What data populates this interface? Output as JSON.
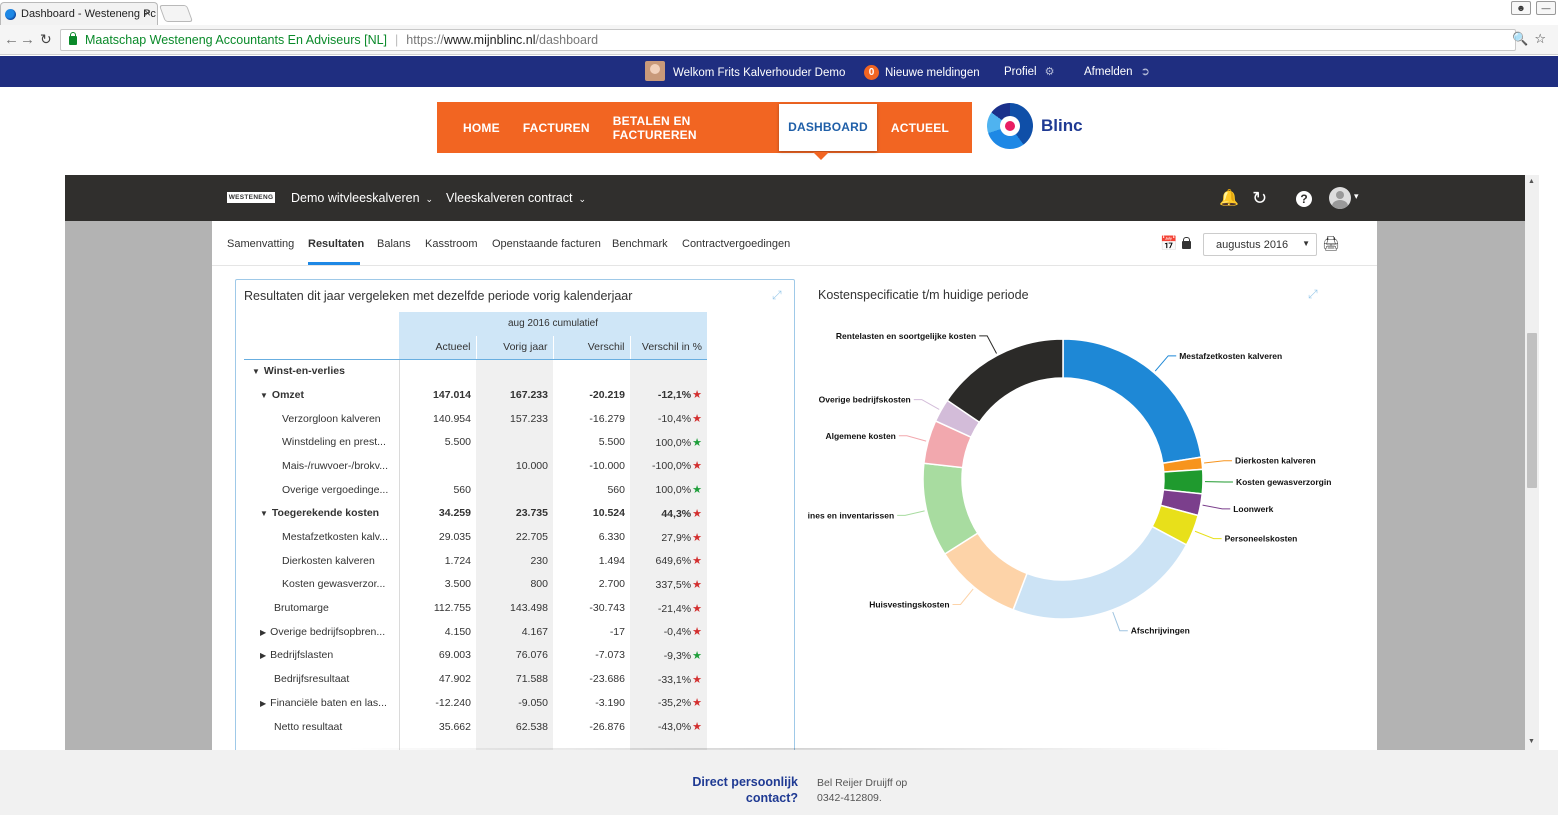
{
  "browser": {
    "tab_title": "Dashboard - Westeneng Pc",
    "tab_close": "×",
    "org_label": "Maatschap Westeneng Accountants En Adviseurs [NL]",
    "url_scheme": "https://",
    "url_host": "www.mijnblinc.nl",
    "url_path": "/dashboard"
  },
  "topbar": {
    "welcome": "Welkom Frits Kalverhouder Demo",
    "notifications_count": "0",
    "notifications_label": "Nieuwe meldingen",
    "profile": "Profiel",
    "logout": "Afmelden"
  },
  "mainnav": {
    "items": [
      "HOME",
      "FACTUREN",
      "BETALEN EN FACTUREREN",
      "DASHBOARD",
      "ACTUEEL"
    ],
    "active": "DASHBOARD",
    "brand": "Blinc"
  },
  "dashboard": {
    "mini_logo": "WESTENENG",
    "company": "Demo witvleeskalveren",
    "contract": "Vleeskalveren contract",
    "subtabs": [
      "Samenvatting",
      "Resultaten",
      "Balans",
      "Kasstroom",
      "Openstaande facturen",
      "Benchmark",
      "Contractvergoedingen"
    ],
    "period": "augustus 2016"
  },
  "results": {
    "title": "Resultaten dit jaar vergeleken met dezelfde periode vorig kalenderjaar",
    "group_header": "aug 2016 cumulatief",
    "columns": [
      "Actueel",
      "Vorig jaar",
      "Verschil",
      "Verschil in %"
    ],
    "rows": [
      {
        "label": "Winst-en-verlies",
        "level": 0,
        "bold": true,
        "toggle": "open",
        "a": "",
        "b": "",
        "c": "",
        "d": "",
        "star": ""
      },
      {
        "label": "Omzet",
        "level": 1,
        "bold": true,
        "toggle": "open",
        "a": "147.014",
        "b": "167.233",
        "c": "-20.219",
        "d": "-12,1%",
        "star": "red"
      },
      {
        "label": "Verzorgloon kalveren",
        "level": 2,
        "bold": false,
        "toggle": "",
        "a": "140.954",
        "b": "157.233",
        "c": "-16.279",
        "d": "-10,4%",
        "star": "red"
      },
      {
        "label": "Winstdeling en prest...",
        "level": 2,
        "bold": false,
        "toggle": "",
        "a": "5.500",
        "b": "",
        "c": "5.500",
        "d": "100,0%",
        "star": "green"
      },
      {
        "label": "Mais-/ruwvoer-/brokv...",
        "level": 2,
        "bold": false,
        "toggle": "",
        "a": "",
        "b": "10.000",
        "c": "-10.000",
        "d": "-100,0%",
        "star": "red"
      },
      {
        "label": "Overige vergoedinge...",
        "level": 2,
        "bold": false,
        "toggle": "",
        "a": "560",
        "b": "",
        "c": "560",
        "d": "100,0%",
        "star": "green"
      },
      {
        "label": "Toegerekende kosten",
        "level": 1,
        "bold": true,
        "toggle": "open",
        "a": "34.259",
        "b": "23.735",
        "c": "10.524",
        "d": "44,3%",
        "star": "red"
      },
      {
        "label": "Mestafzetkosten kalv...",
        "level": 2,
        "bold": false,
        "toggle": "",
        "a": "29.035",
        "b": "22.705",
        "c": "6.330",
        "d": "27,9%",
        "star": "red"
      },
      {
        "label": "Dierkosten kalveren",
        "level": 2,
        "bold": false,
        "toggle": "",
        "a": "1.724",
        "b": "230",
        "c": "1.494",
        "d": "649,6%",
        "star": "red"
      },
      {
        "label": "Kosten gewasverzor...",
        "level": 2,
        "bold": false,
        "toggle": "",
        "a": "3.500",
        "b": "800",
        "c": "2.700",
        "d": "337,5%",
        "star": "red"
      },
      {
        "label": "Brutomarge",
        "level": 15,
        "bold": false,
        "toggle": "",
        "a": "112.755",
        "b": "143.498",
        "c": "-30.743",
        "d": "-21,4%",
        "star": "red"
      },
      {
        "label": "Overige bedrijfsopbren...",
        "level": 1,
        "bold": false,
        "toggle": "closed",
        "a": "4.150",
        "b": "4.167",
        "c": "-17",
        "d": "-0,4%",
        "star": "red"
      },
      {
        "label": "Bedrijfslasten",
        "level": 1,
        "bold": false,
        "toggle": "closed",
        "a": "69.003",
        "b": "76.076",
        "c": "-7.073",
        "d": "-9,3%",
        "star": "green"
      },
      {
        "label": "Bedrijfsresultaat",
        "level": 15,
        "bold": false,
        "toggle": "",
        "a": "47.902",
        "b": "71.588",
        "c": "-23.686",
        "d": "-33,1%",
        "star": "red"
      },
      {
        "label": "Financiële baten en las...",
        "level": 1,
        "bold": false,
        "toggle": "closed",
        "a": "-12.240",
        "b": "-9.050",
        "c": "-3.190",
        "d": "-35,2%",
        "star": "red"
      },
      {
        "label": "Netto resultaat",
        "level": 15,
        "bold": false,
        "toggle": "",
        "a": "35.662",
        "b": "62.538",
        "c": "-26.876",
        "d": "-43,0%",
        "star": "red"
      }
    ]
  },
  "costs": {
    "title": "Kostenspecificatie t/m huidige periode"
  },
  "chart_data": {
    "type": "pie",
    "donut": true,
    "title": "Kostenspecificatie t/m huidige periode",
    "slices": [
      {
        "label": "Mestafzetkosten kalveren",
        "value": 22.5,
        "color": "#1e88d6"
      },
      {
        "label": "Dierkosten kalveren",
        "value": 1.4,
        "color": "#f7941d"
      },
      {
        "label": "Kosten gewasverzorgin",
        "value": 2.8,
        "color": "#1f9a2e"
      },
      {
        "label": "Loonwerk",
        "value": 2.5,
        "color": "#7b3f8c"
      },
      {
        "label": "Personeelskosten",
        "value": 3.6,
        "color": "#e8e01a"
      },
      {
        "label": "Afschrijvingen",
        "value": 23.0,
        "color": "#cce3f5"
      },
      {
        "label": "Huisvestingskosten",
        "value": 10.2,
        "color": "#fdd3a8"
      },
      {
        "label": "chines en inventarissen",
        "value": 10.8,
        "color": "#a8dca0"
      },
      {
        "label": "Algemene kosten",
        "value": 5.0,
        "color": "#f2a8ae"
      },
      {
        "label": "Overige bedrijfskosten",
        "value": 2.7,
        "color": "#d3bcd9"
      },
      {
        "label": "Rentelasten en soortgelijke kosten",
        "value": 15.5,
        "color": "#2b2a28"
      }
    ]
  },
  "footer": {
    "question_line1": "Direct persoonlijk",
    "question_line2": "contact?",
    "text_line1": "Bel Reijer Druijff op",
    "text_line2": "0342-412809."
  }
}
